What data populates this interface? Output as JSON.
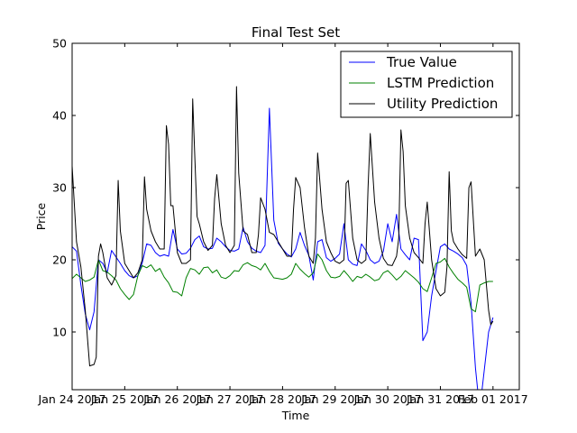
{
  "chart_data": {
    "type": "line",
    "title": "Final Test Set",
    "xlabel": "Time",
    "ylabel": "Price",
    "ylim": [
      2,
      50
    ],
    "yticks": [
      10,
      20,
      30,
      40,
      50
    ],
    "xlim": [
      0,
      204
    ],
    "xticks": [
      {
        "pos": 0,
        "label": "Jan 24 2017"
      },
      {
        "pos": 24,
        "label": "Jan 25 2017"
      },
      {
        "pos": 48,
        "label": "Jan 26 2017"
      },
      {
        "pos": 72,
        "label": "Jan 27 2017"
      },
      {
        "pos": 96,
        "label": "Jan 28 2017"
      },
      {
        "pos": 120,
        "label": "Jan 29 2017"
      },
      {
        "pos": 144,
        "label": "Jan 30 2017"
      },
      {
        "pos": 168,
        "label": "Jan 31 2017"
      },
      {
        "pos": 192,
        "label": "Feb 01 2017"
      }
    ],
    "legend_position": "top-right",
    "grid": false,
    "series": [
      {
        "name": "True Value",
        "color": "#0000ff",
        "points": [
          [
            0,
            21.8
          ],
          [
            2,
            21.2
          ],
          [
            4,
            16.5
          ],
          [
            6,
            12.5
          ],
          [
            8,
            10.3
          ],
          [
            10,
            12.8
          ],
          [
            12,
            20
          ],
          [
            14,
            19.5
          ],
          [
            16,
            18.2
          ],
          [
            18,
            21.3
          ],
          [
            20,
            20.4
          ],
          [
            22,
            19.5
          ],
          [
            24,
            18.5
          ],
          [
            26,
            17.8
          ],
          [
            28,
            17.5
          ],
          [
            30,
            17.8
          ],
          [
            32,
            19.6
          ],
          [
            34,
            22.2
          ],
          [
            36,
            22
          ],
          [
            38,
            21
          ],
          [
            40,
            20.5
          ],
          [
            42,
            20.7
          ],
          [
            44,
            20.5
          ],
          [
            46,
            24.2
          ],
          [
            48,
            21.5
          ],
          [
            50,
            20.8
          ],
          [
            52,
            20.9
          ],
          [
            54,
            21.6
          ],
          [
            56,
            22.8
          ],
          [
            58,
            23.3
          ],
          [
            60,
            21.8
          ],
          [
            62,
            21.5
          ],
          [
            64,
            21.6
          ],
          [
            66,
            23
          ],
          [
            68,
            22.5
          ],
          [
            70,
            21.8
          ],
          [
            72,
            21.3
          ],
          [
            74,
            21.2
          ],
          [
            76,
            21.5
          ],
          [
            78,
            24.5
          ],
          [
            80,
            22.5
          ],
          [
            82,
            21.6
          ],
          [
            84,
            21.2
          ],
          [
            86,
            21
          ],
          [
            88,
            22
          ],
          [
            90,
            41
          ],
          [
            92,
            25.5
          ],
          [
            94,
            22.3
          ],
          [
            96,
            21.5
          ],
          [
            98,
            20.8
          ],
          [
            100,
            20.4
          ],
          [
            102,
            21.5
          ],
          [
            104,
            23.8
          ],
          [
            106,
            22
          ],
          [
            108,
            20.6
          ],
          [
            110,
            17.2
          ],
          [
            112,
            22.5
          ],
          [
            114,
            22.8
          ],
          [
            116,
            20.3
          ],
          [
            118,
            19.8
          ],
          [
            120,
            20.2
          ],
          [
            122,
            20.8
          ],
          [
            124,
            25
          ],
          [
            126,
            20
          ],
          [
            128,
            19.4
          ],
          [
            130,
            19.2
          ],
          [
            132,
            22.2
          ],
          [
            134,
            21.3
          ],
          [
            136,
            20
          ],
          [
            138,
            19.5
          ],
          [
            140,
            19.8
          ],
          [
            142,
            21.2
          ],
          [
            144,
            25
          ],
          [
            146,
            22.5
          ],
          [
            148,
            26.3
          ],
          [
            150,
            21.5
          ],
          [
            152,
            20.7
          ],
          [
            154,
            20
          ],
          [
            156,
            23
          ],
          [
            158,
            22.8
          ],
          [
            160,
            8.8
          ],
          [
            162,
            10
          ],
          [
            164,
            15
          ],
          [
            166,
            18.5
          ],
          [
            168,
            21.8
          ],
          [
            170,
            22.2
          ],
          [
            172,
            21.5
          ],
          [
            174,
            21.2
          ],
          [
            176,
            20.8
          ],
          [
            178,
            20.3
          ],
          [
            180,
            19.2
          ],
          [
            182,
            14
          ],
          [
            184,
            5
          ],
          [
            185,
            2
          ],
          [
            187,
            2
          ],
          [
            190,
            10
          ],
          [
            192,
            12
          ]
        ]
      },
      {
        "name": "LSTM Prediction",
        "color": "#008000",
        "points": [
          [
            0,
            17.4
          ],
          [
            2,
            18
          ],
          [
            4,
            17.5
          ],
          [
            6,
            17
          ],
          [
            8,
            17.2
          ],
          [
            10,
            17.6
          ],
          [
            12,
            20
          ],
          [
            14,
            18.5
          ],
          [
            16,
            18.3
          ],
          [
            18,
            17.8
          ],
          [
            20,
            17.2
          ],
          [
            22,
            16
          ],
          [
            24,
            15.2
          ],
          [
            26,
            14.5
          ],
          [
            28,
            15.2
          ],
          [
            30,
            17.8
          ],
          [
            32,
            19.2
          ],
          [
            34,
            18.9
          ],
          [
            36,
            19.3
          ],
          [
            38,
            18.4
          ],
          [
            40,
            18.8
          ],
          [
            42,
            17.6
          ],
          [
            44,
            16.8
          ],
          [
            46,
            15.6
          ],
          [
            48,
            15.5
          ],
          [
            50,
            15
          ],
          [
            52,
            17.5
          ],
          [
            54,
            18.8
          ],
          [
            56,
            18.6
          ],
          [
            58,
            18
          ],
          [
            60,
            18.9
          ],
          [
            62,
            19
          ],
          [
            64,
            18.2
          ],
          [
            66,
            18.6
          ],
          [
            68,
            17.6
          ],
          [
            70,
            17.4
          ],
          [
            72,
            17.8
          ],
          [
            74,
            18.5
          ],
          [
            76,
            18.4
          ],
          [
            78,
            19.3
          ],
          [
            80,
            19.6
          ],
          [
            82,
            19.2
          ],
          [
            84,
            19
          ],
          [
            86,
            18.6
          ],
          [
            88,
            19.5
          ],
          [
            90,
            18.4
          ],
          [
            92,
            17.5
          ],
          [
            94,
            17.4
          ],
          [
            96,
            17.3
          ],
          [
            98,
            17.5
          ],
          [
            100,
            18
          ],
          [
            102,
            19.5
          ],
          [
            104,
            18.7
          ],
          [
            106,
            18.1
          ],
          [
            108,
            17.6
          ],
          [
            110,
            18.2
          ],
          [
            112,
            20.8
          ],
          [
            114,
            20
          ],
          [
            116,
            18.5
          ],
          [
            118,
            17.6
          ],
          [
            120,
            17.5
          ],
          [
            122,
            17.7
          ],
          [
            124,
            18.5
          ],
          [
            126,
            17.8
          ],
          [
            128,
            17
          ],
          [
            130,
            17.7
          ],
          [
            132,
            17.5
          ],
          [
            134,
            18
          ],
          [
            136,
            17.6
          ],
          [
            138,
            17.1
          ],
          [
            140,
            17.3
          ],
          [
            142,
            18.2
          ],
          [
            144,
            18.5
          ],
          [
            146,
            17.9
          ],
          [
            148,
            17.2
          ],
          [
            150,
            17.7
          ],
          [
            152,
            18.5
          ],
          [
            154,
            18
          ],
          [
            156,
            17.5
          ],
          [
            158,
            16.9
          ],
          [
            160,
            16
          ],
          [
            162,
            15.6
          ],
          [
            164,
            17.5
          ],
          [
            166,
            19.5
          ],
          [
            168,
            19.7
          ],
          [
            170,
            20.2
          ],
          [
            172,
            19
          ],
          [
            174,
            18.1
          ],
          [
            176,
            17.3
          ],
          [
            178,
            16.8
          ],
          [
            180,
            16.2
          ],
          [
            182,
            13.2
          ],
          [
            184,
            12.8
          ],
          [
            186,
            16.5
          ],
          [
            188,
            16.8
          ],
          [
            190,
            17
          ],
          [
            192,
            17
          ]
        ]
      },
      {
        "name": "Utility Prediction",
        "color": "#000000",
        "points": [
          [
            0,
            33
          ],
          [
            2,
            22.5
          ],
          [
            4,
            19
          ],
          [
            6,
            13
          ],
          [
            8,
            5.3
          ],
          [
            10,
            5.5
          ],
          [
            11,
            6.5
          ],
          [
            12,
            20.5
          ],
          [
            13,
            22.2
          ],
          [
            14,
            21
          ],
          [
            16,
            17.5
          ],
          [
            18,
            16.5
          ],
          [
            20,
            17.8
          ],
          [
            21,
            31
          ],
          [
            22,
            24
          ],
          [
            24,
            19.5
          ],
          [
            26,
            18.5
          ],
          [
            28,
            17.5
          ],
          [
            30,
            18.2
          ],
          [
            32,
            20
          ],
          [
            33,
            31.5
          ],
          [
            34,
            27
          ],
          [
            36,
            24
          ],
          [
            38,
            22.5
          ],
          [
            40,
            21.5
          ],
          [
            42,
            21.5
          ],
          [
            43,
            38.6
          ],
          [
            44,
            36
          ],
          [
            45,
            27.5
          ],
          [
            46,
            27.5
          ],
          [
            48,
            21
          ],
          [
            50,
            19.5
          ],
          [
            52,
            19.5
          ],
          [
            54,
            20
          ],
          [
            55,
            42.3
          ],
          [
            56,
            34
          ],
          [
            57,
            26
          ],
          [
            58,
            25
          ],
          [
            60,
            22.5
          ],
          [
            62,
            21.3
          ],
          [
            64,
            22
          ],
          [
            65,
            28.5
          ],
          [
            66,
            31.8
          ],
          [
            68,
            25
          ],
          [
            70,
            22
          ],
          [
            72,
            21
          ],
          [
            74,
            22
          ],
          [
            75,
            44
          ],
          [
            76,
            32
          ],
          [
            78,
            24
          ],
          [
            80,
            23.5
          ],
          [
            82,
            21
          ],
          [
            84,
            21
          ],
          [
            85,
            23.5
          ],
          [
            86,
            28.6
          ],
          [
            88,
            27
          ],
          [
            90,
            23.8
          ],
          [
            92,
            23.5
          ],
          [
            94,
            22.5
          ],
          [
            96,
            21.5
          ],
          [
            98,
            20.5
          ],
          [
            100,
            20.5
          ],
          [
            101,
            27
          ],
          [
            102,
            31.4
          ],
          [
            104,
            30
          ],
          [
            106,
            24.5
          ],
          [
            108,
            20.5
          ],
          [
            110,
            19.5
          ],
          [
            111,
            23
          ],
          [
            112,
            34.8
          ],
          [
            114,
            27
          ],
          [
            116,
            22.5
          ],
          [
            118,
            21
          ],
          [
            120,
            19.8
          ],
          [
            122,
            19.5
          ],
          [
            124,
            20
          ],
          [
            125,
            30.6
          ],
          [
            126,
            31
          ],
          [
            128,
            23
          ],
          [
            130,
            20
          ],
          [
            132,
            19.5
          ],
          [
            134,
            20
          ],
          [
            135,
            30
          ],
          [
            136,
            37.5
          ],
          [
            138,
            28
          ],
          [
            140,
            23
          ],
          [
            142,
            20.2
          ],
          [
            144,
            19.3
          ],
          [
            146,
            19.2
          ],
          [
            148,
            20.5
          ],
          [
            149,
            23
          ],
          [
            150,
            38
          ],
          [
            151,
            35
          ],
          [
            152,
            27.5
          ],
          [
            154,
            23
          ],
          [
            156,
            21
          ],
          [
            158,
            20.3
          ],
          [
            160,
            19.5
          ],
          [
            161,
            25
          ],
          [
            162,
            28
          ],
          [
            164,
            20
          ],
          [
            166,
            16
          ],
          [
            168,
            15
          ],
          [
            170,
            15.5
          ],
          [
            171,
            19
          ],
          [
            172,
            32.2
          ],
          [
            173,
            24
          ],
          [
            174,
            22.5
          ],
          [
            176,
            21.5
          ],
          [
            178,
            20.7
          ],
          [
            180,
            20.2
          ],
          [
            181,
            30
          ],
          [
            182,
            30.8
          ],
          [
            184,
            20.5
          ],
          [
            186,
            21.5
          ],
          [
            188,
            20
          ],
          [
            190,
            13
          ],
          [
            191,
            11
          ],
          [
            192,
            11.5
          ]
        ]
      }
    ]
  }
}
